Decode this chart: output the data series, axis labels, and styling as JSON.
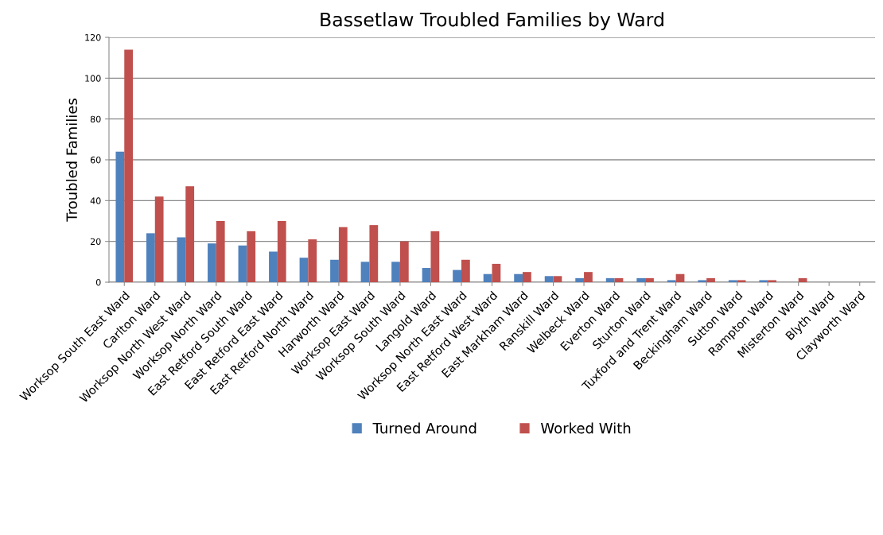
{
  "chart_data": {
    "type": "bar",
    "title": "Bassetlaw Troubled Families by Ward",
    "ylabel": "Troubled Families",
    "categories": [
      "Worksop South East Ward",
      "Carlton Ward",
      "Worksop North West Ward",
      "Worksop North Ward",
      "East Retford South Ward",
      "East Retford East Ward",
      "East Retford North Ward",
      "Harworth Ward",
      "Worksop East Ward",
      "Worksop South Ward",
      "Langold Ward",
      "Worksop North East Ward",
      "East Retford West Ward",
      "East Markham Ward",
      "Ranskill Ward",
      "Welbeck Ward",
      "Everton Ward",
      "Sturton Ward",
      "Tuxford and Trent Ward",
      "Beckingham Ward",
      "Sutton Ward",
      "Rampton Ward",
      "Misterton Ward",
      "Blyth Ward",
      "Clayworth Ward"
    ],
    "series": [
      {
        "name": "Turned Around",
        "color": "#4f81bd",
        "values": [
          64,
          24,
          22,
          19,
          18,
          15,
          12,
          11,
          10,
          10,
          7,
          6,
          4,
          4,
          3,
          2,
          2,
          2,
          1,
          1,
          1,
          1,
          0,
          0,
          0
        ]
      },
      {
        "name": "Worked With",
        "color": "#c0504d",
        "values": [
          114,
          42,
          47,
          30,
          25,
          30,
          21,
          27,
          28,
          20,
          25,
          11,
          9,
          5,
          3,
          5,
          2,
          2,
          4,
          2,
          1,
          1,
          2,
          0,
          0
        ]
      }
    ],
    "ylim": [
      0,
      120
    ],
    "yticks": [
      0,
      20,
      40,
      60,
      80,
      100,
      120
    ],
    "grid": "y",
    "legend": "bottom"
  }
}
